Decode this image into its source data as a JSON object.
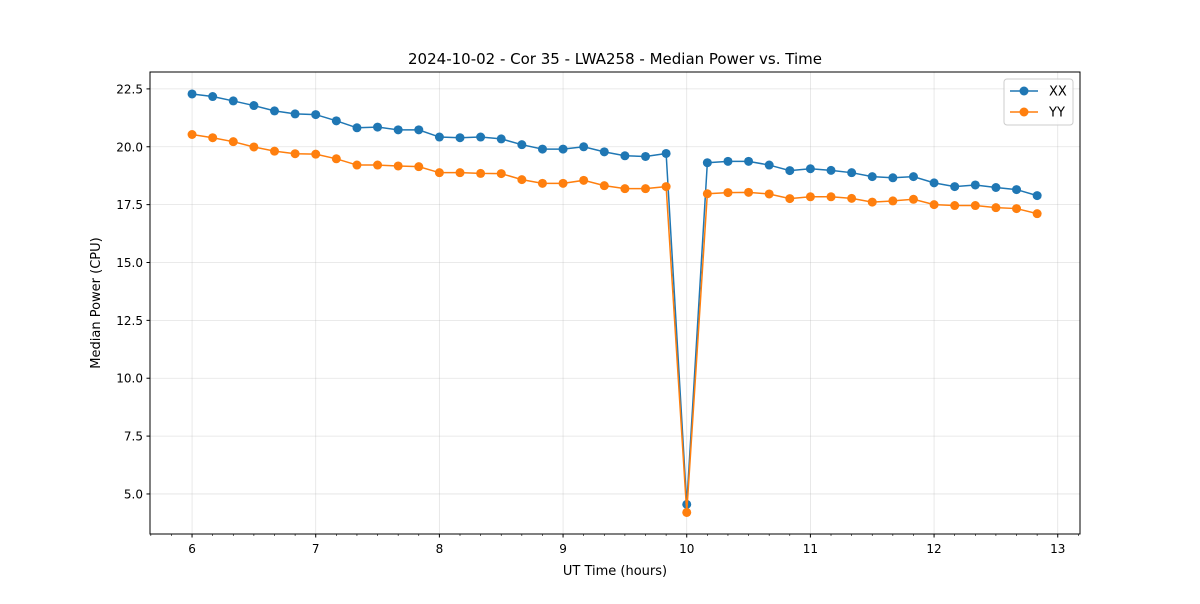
{
  "chart_data": {
    "type": "line",
    "title": "2024-10-02 - Cor 35 - LWA258 - Median Power vs. Time",
    "xlabel": "UT Time (hours)",
    "ylabel": "Median Power (CPU)",
    "xlim": [
      5.66,
      13.18
    ],
    "ylim": [
      3.27,
      23.23
    ],
    "xticks": [
      6,
      7,
      8,
      9,
      10,
      11,
      12,
      13
    ],
    "xtick_labels": [
      "6",
      "7",
      "8",
      "9",
      "10",
      "11",
      "12",
      "13"
    ],
    "yticks": [
      5.0,
      7.5,
      10.0,
      12.5,
      15.0,
      17.5,
      20.0,
      22.5
    ],
    "ytick_labels": [
      "5.0",
      "7.5",
      "10.0",
      "12.5",
      "15.0",
      "17.5",
      "20.0",
      "22.5"
    ],
    "x_minor_step": 0.16667,
    "grid": true,
    "legend_position": "top-right",
    "x_start": 6.0,
    "x_step_hours": 0.16667,
    "series": [
      {
        "name": "XX",
        "color": "#1f77b4",
        "values": [
          22.28,
          22.17,
          21.98,
          21.78,
          21.55,
          21.42,
          21.39,
          21.12,
          20.82,
          20.85,
          20.73,
          20.73,
          20.42,
          20.39,
          20.42,
          20.34,
          20.09,
          19.9,
          19.9,
          20.0,
          19.78,
          19.61,
          19.58,
          19.71,
          4.55,
          19.31,
          19.37,
          19.37,
          19.21,
          18.97,
          19.05,
          18.98,
          18.88,
          18.71,
          18.66,
          18.71,
          18.44,
          18.28,
          18.35,
          18.24,
          18.15,
          17.89
        ]
      },
      {
        "name": "YY",
        "color": "#ff7f0e",
        "values": [
          20.53,
          20.39,
          20.22,
          19.99,
          19.81,
          19.7,
          19.68,
          19.48,
          19.21,
          19.21,
          19.17,
          19.14,
          18.88,
          18.88,
          18.85,
          18.84,
          18.58,
          18.42,
          18.42,
          18.55,
          18.32,
          18.19,
          18.19,
          18.28,
          4.2,
          17.97,
          18.02,
          18.03,
          17.96,
          17.76,
          17.84,
          17.84,
          17.77,
          17.61,
          17.66,
          17.73,
          17.5,
          17.46,
          17.46,
          17.37,
          17.33,
          17.11
        ]
      }
    ]
  }
}
